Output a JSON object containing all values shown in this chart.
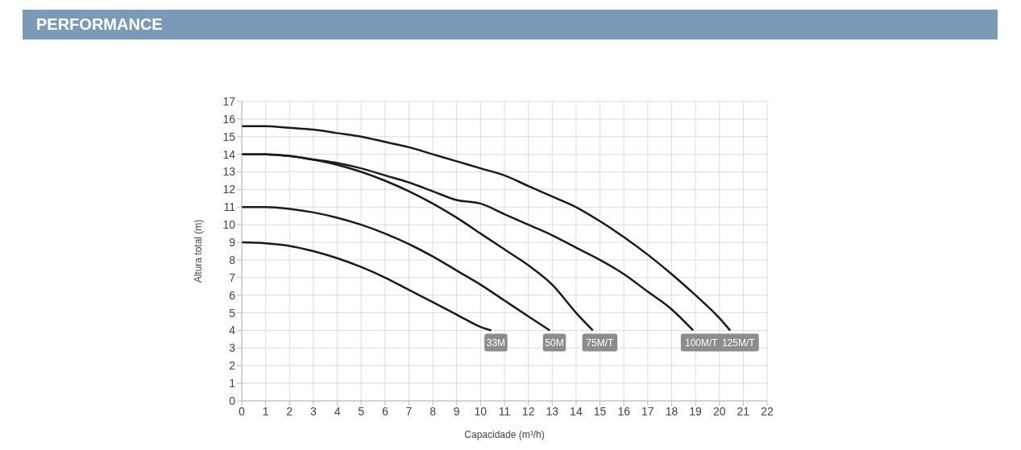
{
  "chart_data": {
    "type": "line",
    "title": "PERFORMANCE",
    "xlabel": "Capacidade (m³/h)",
    "ylabel": "Altura total (m)",
    "xlim": [
      0,
      22
    ],
    "xticks": [
      0,
      1,
      2,
      3,
      4,
      5,
      6,
      7,
      8,
      9,
      10,
      11,
      12,
      13,
      14,
      15,
      16,
      17,
      18,
      19,
      20,
      21,
      22
    ],
    "ylim": [
      0,
      17
    ],
    "yticks": [
      0,
      1,
      2,
      3,
      4,
      5,
      6,
      7,
      8,
      9,
      10,
      11,
      12,
      13,
      14,
      15,
      16,
      17
    ],
    "grid": true,
    "legend": false,
    "marker": "none",
    "line_style": "solid",
    "series": [
      {
        "name": "33M",
        "color": "#1a1a1a",
        "x": [
          0,
          1,
          2,
          3,
          4,
          5,
          6,
          7,
          8,
          9,
          10,
          10.45
        ],
        "values": [
          9,
          8.95,
          8.8,
          8.5,
          8.1,
          7.6,
          7.0,
          6.3,
          5.6,
          4.9,
          4.2,
          4
        ]
      },
      {
        "name": "50M",
        "color": "#1a1a1a",
        "x": [
          0,
          1,
          2,
          3,
          4,
          5,
          6,
          7,
          8,
          9,
          10,
          11,
          12,
          12.9
        ],
        "values": [
          11,
          11,
          10.9,
          10.7,
          10.4,
          10.0,
          9.5,
          8.9,
          8.2,
          7.4,
          6.6,
          5.7,
          4.8,
          4
        ]
      },
      {
        "name": "75M/T",
        "color": "#1a1a1a",
        "x": [
          0,
          1,
          2,
          3,
          4,
          5,
          6,
          7,
          8,
          9,
          10,
          11,
          12,
          13,
          14,
          14.7
        ],
        "values": [
          14,
          14,
          13.9,
          13.7,
          13.4,
          13.0,
          12.5,
          11.9,
          11.2,
          10.4,
          9.5,
          8.6,
          7.7,
          6.6,
          5.0,
          4
        ]
      },
      {
        "name": "100M/T",
        "color": "#1a1a1a",
        "x": [
          0,
          1,
          2,
          3,
          4,
          5,
          6,
          7,
          8,
          9,
          10,
          11,
          12,
          13,
          14,
          15,
          16,
          17,
          18,
          18.9
        ],
        "values": [
          14,
          14,
          13.9,
          13.7,
          13.5,
          13.2,
          12.8,
          12.4,
          11.9,
          11.4,
          11.2,
          10.6,
          10.0,
          9.4,
          8.7,
          8.0,
          7.2,
          6.2,
          5.2,
          4
        ]
      },
      {
        "name": "125M/T",
        "color": "#1a1a1a",
        "x": [
          0,
          1,
          2,
          3,
          4,
          5,
          6,
          7,
          8,
          9,
          10,
          11,
          12,
          13,
          14,
          15,
          16,
          17,
          18,
          19,
          20,
          20.45
        ],
        "values": [
          15.6,
          15.6,
          15.5,
          15.4,
          15.2,
          15.0,
          14.7,
          14.4,
          14.0,
          13.6,
          13.2,
          12.8,
          12.2,
          11.6,
          11.0,
          10.2,
          9.3,
          8.3,
          7.2,
          6.0,
          4.7,
          4
        ]
      }
    ]
  }
}
